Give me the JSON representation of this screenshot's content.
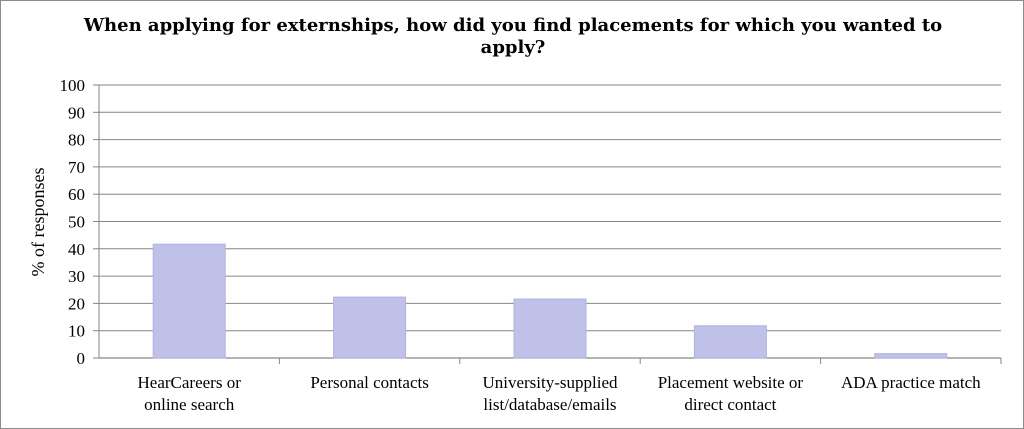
{
  "chart_data": {
    "type": "bar",
    "title": "When applying for externships, how did you find placements for which you wanted to apply?",
    "ylabel": "% of responses",
    "xlabel": "",
    "ylim": [
      0,
      100
    ],
    "yticks": [
      0,
      10,
      20,
      30,
      40,
      50,
      60,
      70,
      80,
      90,
      100
    ],
    "grid": true,
    "categories": [
      [
        "HearCareers or",
        "online search"
      ],
      [
        "Personal contacts"
      ],
      [
        "University-supplied",
        "list/database/emails"
      ],
      [
        "Placement website or",
        "direct contact"
      ],
      [
        "ADA practice match"
      ]
    ],
    "values": [
      41.7,
      22.3,
      21.6,
      11.8,
      1.6
    ],
    "colors": {
      "bar": "#bfc1e8",
      "bar_edge": "#b0b3e0",
      "grid": "#868686",
      "axis": "#868686"
    }
  }
}
